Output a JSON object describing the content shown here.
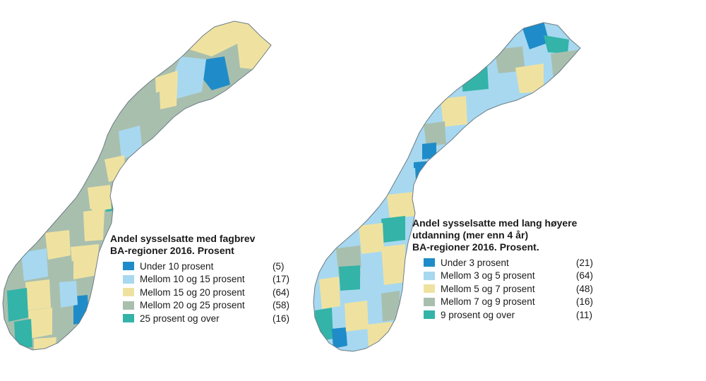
{
  "colors": {
    "dark_blue": "#1f8cc9",
    "light_blue": "#a7d8f0",
    "yellow": "#efe2a0",
    "grey_green": "#a9bfae",
    "teal": "#34b3a8",
    "outline": "#6c7c86"
  },
  "maps": [
    {
      "title_line1": "Andel sysselsatte med fagbrev",
      "title_line2": "BA-regioner 2016. Prosent",
      "legend": [
        {
          "label": "Under 10 prosent",
          "count": "(5)",
          "color": "#1f8cc9"
        },
        {
          "label": "Mellom 10 og 15 prosent",
          "count": "(17)",
          "color": "#a7d8f0"
        },
        {
          "label": "Mellom 15 og 20 prosent",
          "count": "(64)",
          "color": "#efe2a0"
        },
        {
          "label": "Mellom 20 og 25 prosent",
          "count": "(58)",
          "color": "#a9bfae"
        },
        {
          "label": "25 prosent og over",
          "count": "(16)",
          "color": "#34b3a8"
        }
      ]
    },
    {
      "title_line1": "Andel sysselsatte med lang høyere",
      "title_line2": "utdanning (mer enn 4 år)",
      "title_line3": "BA-regioner 2016. Prosent.",
      "legend": [
        {
          "label": "Under 3 prosent",
          "count": "(21)",
          "color": "#1f8cc9"
        },
        {
          "label": "Mellom 3 og 5 prosent",
          "count": "(64)",
          "color": "#a7d8f0"
        },
        {
          "label": "Mellom 5 og 7 prosent",
          "count": "(48)",
          "color": "#efe2a0"
        },
        {
          "label": "Mellom 7 og 9 prosent",
          "count": "(16)",
          "color": "#a9bfae"
        },
        {
          "label": "9 prosent og over",
          "count": "(11)",
          "color": "#34b3a8"
        }
      ]
    }
  ]
}
